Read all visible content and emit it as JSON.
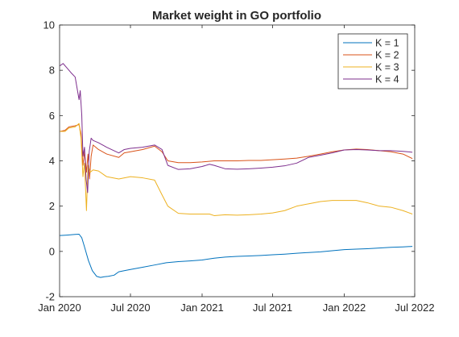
{
  "chart_data": {
    "type": "line",
    "title": "Market weight in GO portfolio",
    "xlabel": "",
    "ylabel": "",
    "xlim": [
      "2020-01-01",
      "2022-07-01"
    ],
    "ylim": [
      -2,
      10
    ],
    "x_ticks": [
      "2020-01-01",
      "2020-07-01",
      "2021-01-01",
      "2021-07-01",
      "2022-01-01",
      "2022-07-01"
    ],
    "x_tick_labels": [
      "Jan 2020",
      "Jul 2020",
      "Jan 2021",
      "Jul 2021",
      "Jan 2022",
      "Jul 2022"
    ],
    "y_ticks": [
      -2,
      0,
      2,
      4,
      6,
      8,
      10
    ],
    "y_tick_labels": [
      "-2",
      "0",
      "2",
      "4",
      "6",
      "8",
      "10"
    ],
    "grid": false,
    "legend_position": "top-right",
    "series": [
      {
        "name": "K = 1",
        "color": "#0072BD",
        "points": [
          [
            "2020-01-02",
            0.7
          ],
          [
            "2020-01-20",
            0.72
          ],
          [
            "2020-02-10",
            0.75
          ],
          [
            "2020-02-20",
            0.76
          ],
          [
            "2020-02-27",
            0.6
          ],
          [
            "2020-03-05",
            0.2
          ],
          [
            "2020-03-15",
            -0.4
          ],
          [
            "2020-03-25",
            -0.85
          ],
          [
            "2020-04-05",
            -1.1
          ],
          [
            "2020-04-15",
            -1.15
          ],
          [
            "2020-04-25",
            -1.12
          ],
          [
            "2020-05-05",
            -1.1
          ],
          [
            "2020-05-20",
            -1.05
          ],
          [
            "2020-06-01",
            -0.9
          ],
          [
            "2020-06-15",
            -0.85
          ],
          [
            "2020-07-01",
            -0.8
          ],
          [
            "2020-08-01",
            -0.7
          ],
          [
            "2020-09-01",
            -0.6
          ],
          [
            "2020-10-01",
            -0.5
          ],
          [
            "2020-11-01",
            -0.45
          ],
          [
            "2020-12-01",
            -0.42
          ],
          [
            "2021-01-01",
            -0.38
          ],
          [
            "2021-02-01",
            -0.3
          ],
          [
            "2021-03-01",
            -0.25
          ],
          [
            "2021-04-01",
            -0.22
          ],
          [
            "2021-05-01",
            -0.2
          ],
          [
            "2021-06-01",
            -0.18
          ],
          [
            "2021-07-01",
            -0.15
          ],
          [
            "2021-08-01",
            -0.12
          ],
          [
            "2021-09-01",
            -0.08
          ],
          [
            "2021-10-01",
            -0.05
          ],
          [
            "2021-11-01",
            -0.02
          ],
          [
            "2021-12-01",
            0.03
          ],
          [
            "2022-01-01",
            0.08
          ],
          [
            "2022-02-01",
            0.1
          ],
          [
            "2022-03-01",
            0.12
          ],
          [
            "2022-04-01",
            0.15
          ],
          [
            "2022-05-01",
            0.18
          ],
          [
            "2022-06-01",
            0.2
          ],
          [
            "2022-06-25",
            0.22
          ]
        ]
      },
      {
        "name": "K = 2",
        "color": "#D95319",
        "points": [
          [
            "2020-01-02",
            5.3
          ],
          [
            "2020-01-15",
            5.35
          ],
          [
            "2020-01-25",
            5.5
          ],
          [
            "2020-02-10",
            5.55
          ],
          [
            "2020-02-20",
            5.6
          ],
          [
            "2020-02-25",
            5.2
          ],
          [
            "2020-03-01",
            3.8
          ],
          [
            "2020-03-05",
            4.4
          ],
          [
            "2020-03-10",
            3.5
          ],
          [
            "2020-03-14",
            4.3
          ],
          [
            "2020-03-18",
            3.2
          ],
          [
            "2020-03-22",
            4.2
          ],
          [
            "2020-03-27",
            4.7
          ],
          [
            "2020-04-10",
            4.5
          ],
          [
            "2020-05-01",
            4.3
          ],
          [
            "2020-06-01",
            4.15
          ],
          [
            "2020-06-15",
            4.35
          ],
          [
            "2020-07-01",
            4.4
          ],
          [
            "2020-08-01",
            4.5
          ],
          [
            "2020-09-01",
            4.65
          ],
          [
            "2020-09-20",
            4.4
          ],
          [
            "2020-10-05",
            4.0
          ],
          [
            "2020-11-01",
            3.92
          ],
          [
            "2020-12-01",
            3.92
          ],
          [
            "2021-01-01",
            3.95
          ],
          [
            "2021-02-01",
            4.0
          ],
          [
            "2021-03-01",
            4.0
          ],
          [
            "2021-04-01",
            4.0
          ],
          [
            "2021-05-01",
            4.02
          ],
          [
            "2021-06-01",
            4.02
          ],
          [
            "2021-07-01",
            4.05
          ],
          [
            "2021-08-01",
            4.08
          ],
          [
            "2021-09-01",
            4.12
          ],
          [
            "2021-10-01",
            4.2
          ],
          [
            "2021-11-01",
            4.3
          ],
          [
            "2021-12-01",
            4.4
          ],
          [
            "2022-01-01",
            4.48
          ],
          [
            "2022-02-01",
            4.52
          ],
          [
            "2022-03-01",
            4.5
          ],
          [
            "2022-04-01",
            4.45
          ],
          [
            "2022-05-01",
            4.4
          ],
          [
            "2022-06-01",
            4.3
          ],
          [
            "2022-06-25",
            4.1
          ]
        ]
      },
      {
        "name": "K = 3",
        "color": "#EDB120",
        "points": [
          [
            "2020-01-02",
            5.3
          ],
          [
            "2020-01-15",
            5.3
          ],
          [
            "2020-01-25",
            5.45
          ],
          [
            "2020-02-10",
            5.5
          ],
          [
            "2020-02-20",
            5.65
          ],
          [
            "2020-02-25",
            5.0
          ],
          [
            "2020-03-01",
            3.3
          ],
          [
            "2020-03-05",
            3.9
          ],
          [
            "2020-03-10",
            1.8
          ],
          [
            "2020-03-14",
            3.8
          ],
          [
            "2020-03-20",
            3.5
          ],
          [
            "2020-03-27",
            3.6
          ],
          [
            "2020-04-10",
            3.55
          ],
          [
            "2020-05-01",
            3.3
          ],
          [
            "2020-06-01",
            3.2
          ],
          [
            "2020-07-01",
            3.3
          ],
          [
            "2020-08-01",
            3.25
          ],
          [
            "2020-09-01",
            3.15
          ],
          [
            "2020-09-20",
            2.5
          ],
          [
            "2020-10-05",
            2.0
          ],
          [
            "2020-11-01",
            1.68
          ],
          [
            "2020-12-01",
            1.65
          ],
          [
            "2021-01-01",
            1.65
          ],
          [
            "2021-01-20",
            1.65
          ],
          [
            "2021-02-01",
            1.58
          ],
          [
            "2021-03-01",
            1.62
          ],
          [
            "2021-04-01",
            1.6
          ],
          [
            "2021-05-01",
            1.62
          ],
          [
            "2021-06-01",
            1.65
          ],
          [
            "2021-07-01",
            1.7
          ],
          [
            "2021-08-01",
            1.8
          ],
          [
            "2021-09-01",
            2.0
          ],
          [
            "2021-10-01",
            2.1
          ],
          [
            "2021-11-01",
            2.2
          ],
          [
            "2021-12-01",
            2.25
          ],
          [
            "2022-01-01",
            2.25
          ],
          [
            "2022-02-01",
            2.25
          ],
          [
            "2022-03-01",
            2.15
          ],
          [
            "2022-04-01",
            2.0
          ],
          [
            "2022-05-01",
            1.95
          ],
          [
            "2022-06-01",
            1.8
          ],
          [
            "2022-06-25",
            1.65
          ]
        ]
      },
      {
        "name": "K = 4",
        "color": "#7E2F8E",
        "points": [
          [
            "2020-01-02",
            8.2
          ],
          [
            "2020-01-10",
            8.3
          ],
          [
            "2020-01-20",
            8.1
          ],
          [
            "2020-01-30",
            7.9
          ],
          [
            "2020-02-10",
            7.7
          ],
          [
            "2020-02-15",
            7.2
          ],
          [
            "2020-02-20",
            6.7
          ],
          [
            "2020-02-23",
            7.1
          ],
          [
            "2020-02-27",
            6.0
          ],
          [
            "2020-03-01",
            4.2
          ],
          [
            "2020-03-05",
            4.6
          ],
          [
            "2020-03-09",
            3.2
          ],
          [
            "2020-03-13",
            2.6
          ],
          [
            "2020-03-17",
            4.4
          ],
          [
            "2020-03-22",
            5.0
          ],
          [
            "2020-03-27",
            4.9
          ],
          [
            "2020-04-10",
            4.8
          ],
          [
            "2020-05-01",
            4.6
          ],
          [
            "2020-06-01",
            4.35
          ],
          [
            "2020-06-15",
            4.5
          ],
          [
            "2020-07-01",
            4.55
          ],
          [
            "2020-08-01",
            4.6
          ],
          [
            "2020-09-01",
            4.7
          ],
          [
            "2020-09-20",
            4.5
          ],
          [
            "2020-10-05",
            3.8
          ],
          [
            "2020-11-01",
            3.62
          ],
          [
            "2020-12-01",
            3.65
          ],
          [
            "2021-01-01",
            3.75
          ],
          [
            "2021-01-20",
            3.85
          ],
          [
            "2021-02-01",
            3.8
          ],
          [
            "2021-03-01",
            3.65
          ],
          [
            "2021-04-01",
            3.63
          ],
          [
            "2021-05-01",
            3.65
          ],
          [
            "2021-06-01",
            3.68
          ],
          [
            "2021-07-01",
            3.72
          ],
          [
            "2021-08-01",
            3.78
          ],
          [
            "2021-09-01",
            3.9
          ],
          [
            "2021-10-01",
            4.15
          ],
          [
            "2021-11-01",
            4.25
          ],
          [
            "2021-12-01",
            4.35
          ],
          [
            "2022-01-01",
            4.48
          ],
          [
            "2022-02-01",
            4.5
          ],
          [
            "2022-03-01",
            4.48
          ],
          [
            "2022-04-01",
            4.45
          ],
          [
            "2022-05-01",
            4.45
          ],
          [
            "2022-06-01",
            4.42
          ],
          [
            "2022-06-25",
            4.38
          ]
        ]
      }
    ]
  }
}
